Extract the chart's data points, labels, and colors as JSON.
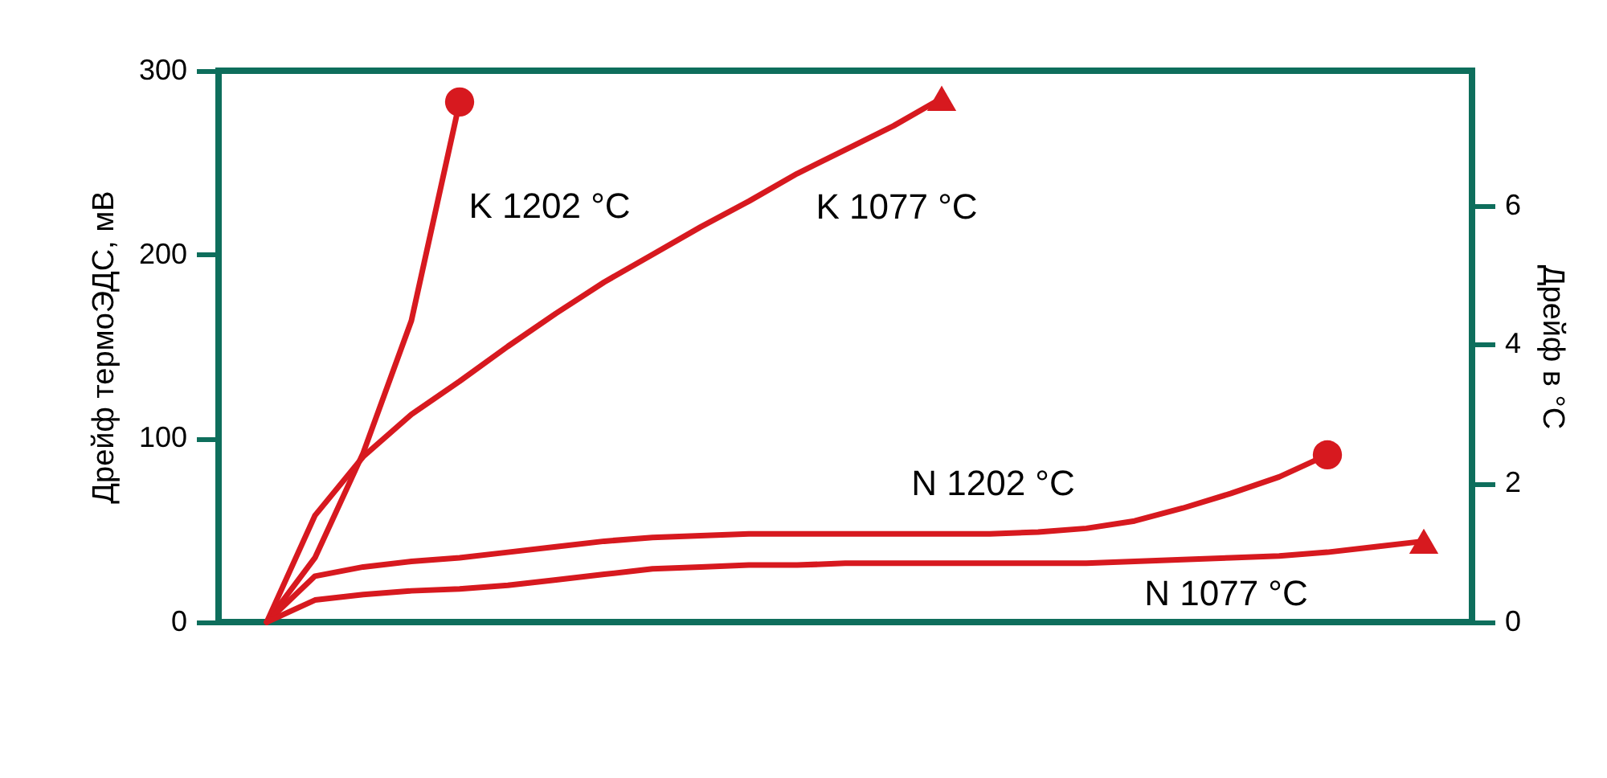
{
  "chart_data": {
    "type": "line",
    "ylabel": "Дрейф термоЭДС, мВ",
    "y2label": "Дрейф в °C",
    "categories": [
      null,
      null,
      null,
      null,
      null,
      null,
      null,
      null,
      null,
      null,
      null,
      null,
      null,
      null,
      null,
      null,
      null,
      null,
      null,
      null,
      null,
      null,
      null,
      null,
      null
    ],
    "ylim": [
      0,
      300
    ],
    "yticks": [
      0,
      100,
      200,
      300
    ],
    "y2lim": [
      0,
      7.94
    ],
    "y2ticks": [
      0,
      2,
      4,
      6
    ],
    "tick_labels": "y",
    "grid": false,
    "line_style": "solid",
    "series": [
      {
        "name": "K 1202 °C",
        "color": "#d7191f",
        "values": [
          0,
          35,
          92,
          164,
          283,
          null,
          null,
          null,
          null,
          null,
          null,
          null,
          null,
          null,
          null,
          null,
          null,
          null,
          null,
          null,
          null,
          null,
          null,
          null,
          null
        ]
      },
      {
        "name": "K 1077 °C",
        "color": "#d7191f",
        "values": [
          0,
          58,
          90,
          113,
          131,
          150,
          168,
          185,
          200,
          215,
          229,
          244,
          257,
          270,
          285,
          null,
          null,
          null,
          null,
          null,
          null,
          null,
          null,
          null,
          null
        ]
      },
      {
        "name": "N 1202 °C",
        "color": "#d7191f",
        "values": [
          0,
          25,
          30,
          33,
          35,
          38,
          41,
          44,
          46,
          47,
          48,
          48,
          48,
          48,
          48,
          48,
          49,
          51,
          55,
          62,
          70,
          79,
          91,
          null,
          null
        ]
      },
      {
        "name": "N 1077 °C",
        "color": "#d7191f",
        "values": [
          0,
          12,
          15,
          17,
          18,
          20,
          23,
          26,
          29,
          30,
          31,
          31,
          32,
          32,
          32,
          32,
          32,
          32,
          33,
          34,
          35,
          36,
          38,
          41,
          44
        ]
      },
      {
        "type": "scatter",
        "marker": "circle",
        "color": "#d7191f",
        "values": [
          null,
          null,
          null,
          null,
          283,
          null,
          null,
          null,
          null,
          null,
          null,
          null,
          null,
          null,
          null,
          null,
          null,
          null,
          null,
          null,
          null,
          null,
          91,
          null,
          null
        ]
      },
      {
        "type": "scatter",
        "marker": "triangle",
        "color": "#d7191f",
        "values": [
          null,
          null,
          null,
          null,
          null,
          null,
          null,
          null,
          null,
          null,
          null,
          null,
          null,
          null,
          285,
          null,
          null,
          null,
          null,
          null,
          null,
          null,
          null,
          null,
          44
        ]
      }
    ]
  }
}
